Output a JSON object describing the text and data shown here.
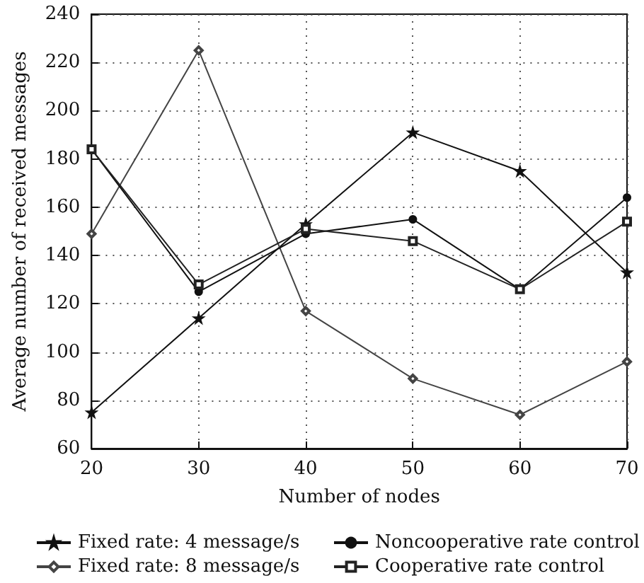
{
  "chart_data": {
    "type": "line",
    "xlabel": "Number of nodes",
    "ylabel": "Average number of received messages",
    "x": [
      20,
      30,
      40,
      50,
      60,
      70
    ],
    "xlim": [
      20,
      70
    ],
    "xticks": [
      20,
      30,
      40,
      50,
      60,
      70
    ],
    "ylim": [
      60,
      240
    ],
    "yticks": [
      60,
      80,
      100,
      120,
      140,
      160,
      180,
      200,
      220,
      240
    ],
    "grid": true,
    "legend": "bottom",
    "line_style": "solid",
    "series": [
      {
        "name": "Fixed rate: 4 message/s",
        "color": "#111111",
        "marker": "star",
        "values": [
          75,
          114,
          153,
          191,
          175,
          133
        ]
      },
      {
        "name": "Fixed rate: 8 message/s",
        "color": "#444444",
        "marker": "diamond",
        "values": [
          149,
          225,
          117,
          89,
          74,
          96
        ]
      },
      {
        "name": "Noncooperative rate control",
        "color": "#111111",
        "marker": "circle",
        "values": [
          184,
          125,
          149,
          155,
          126,
          164
        ]
      },
      {
        "name": "Cooperative rate control",
        "color": "#222222",
        "marker": "square",
        "values": [
          184,
          128,
          151,
          146,
          126,
          154
        ]
      }
    ]
  }
}
